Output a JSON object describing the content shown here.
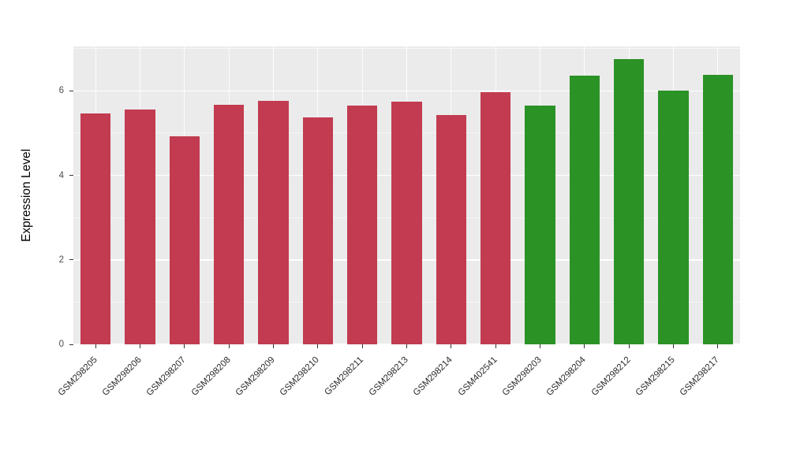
{
  "colors": {
    "bar_red": "#C23B50",
    "bar_green": "#2B9226",
    "panel_bg": "#EBEBEB",
    "grid": "#FFFFFF",
    "tick_text": "#4D4D4D",
    "axis_title_text": "#000000"
  },
  "chart_data": {
    "type": "bar",
    "title": "",
    "xlabel": "",
    "ylabel": "Expression Level",
    "categories": [
      "GSM298205",
      "GSM298206",
      "GSM298207",
      "GSM298208",
      "GSM298209",
      "GSM298210",
      "GSM298211",
      "GSM298213",
      "GSM298214",
      "GSM402541",
      "GSM298203",
      "GSM298204",
      "GSM298212",
      "GSM298215",
      "GSM298217"
    ],
    "values": [
      5.47,
      5.55,
      4.92,
      5.67,
      5.76,
      5.37,
      5.66,
      5.74,
      5.42,
      5.96,
      5.66,
      6.36,
      6.76,
      6.0,
      6.38
    ],
    "groups": [
      "red",
      "red",
      "red",
      "red",
      "red",
      "red",
      "red",
      "red",
      "red",
      "red",
      "green",
      "green",
      "green",
      "green",
      "green"
    ],
    "ylim": [
      0,
      7.05
    ],
    "yticks": [
      0,
      2,
      4,
      6
    ],
    "yticks_minor": [
      1,
      3,
      5,
      7
    ],
    "grid": true,
    "legend_position": "none",
    "x_label_angle": 45
  }
}
